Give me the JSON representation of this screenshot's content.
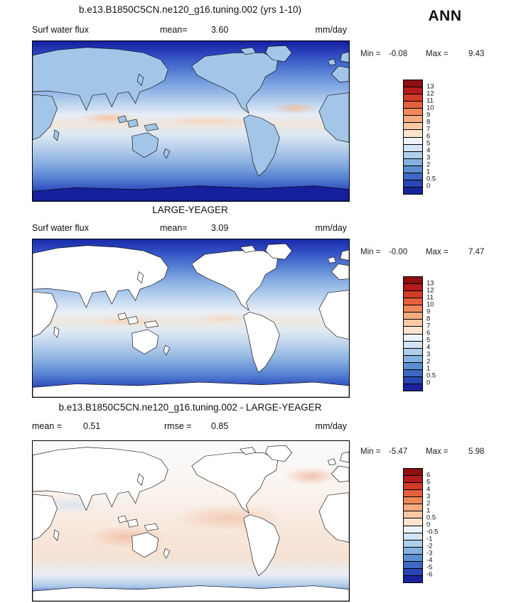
{
  "header": {
    "title": "b.e13.B1850C5CN.ne120_g16.tuning.002 (yrs 1-10)",
    "season": "ANN"
  },
  "palette_top_to_bottom": [
    "#8c1010",
    "#b51b1c",
    "#d23b27",
    "#e4603c",
    "#ef8759",
    "#f5ab80",
    "#f9c9a6",
    "#fbe3d0",
    "#eef2f8",
    "#d3e4f4",
    "#aecfec",
    "#84b2e0",
    "#5c8ed2",
    "#3f68c6",
    "#2a46b6",
    "#1a239e"
  ],
  "panels": [
    {
      "title": "",
      "field_label": "Surf water flux",
      "mean_label": "mean=",
      "mean": "3.60",
      "units": "mm/day",
      "min_label": "Min =",
      "min": "-0.08",
      "max_label": "Max =",
      "max": "9.43",
      "ticks": [
        "13",
        "12",
        "11",
        "10",
        "9",
        "8",
        "7",
        "6",
        "5",
        "4",
        "3",
        "2",
        "1",
        "0.5",
        "0"
      ],
      "land_color": "#a3c6e8",
      "antarctica_color": "#16209c"
    },
    {
      "title": "LARGE-YEAGER",
      "field_label": "Surf water flux",
      "mean_label": "mean=",
      "mean": "3.09",
      "units": "mm/day",
      "min_label": "Min =",
      "min": "-0.00",
      "max_label": "Max =",
      "max": "7.47",
      "ticks": [
        "13",
        "12",
        "11",
        "10",
        "9",
        "8",
        "7",
        "6",
        "5",
        "4",
        "3",
        "2",
        "1",
        "0.5",
        "0"
      ],
      "land_color": "#ffffff",
      "antarctica_color": "#ffffff"
    },
    {
      "title": "b.e13.B1850C5CN.ne120_g16.tuning.002 - LARGE-YEAGER",
      "mean_label": "mean =",
      "mean": "0.51",
      "rmse_label": "rmse =",
      "rmse": "0.85",
      "units": "mm/day",
      "min_label": "Min =",
      "min": "-5.47",
      "max_label": "Max =",
      "max": "5.98",
      "ticks": [
        "6",
        "5",
        "4",
        "3",
        "2",
        "1",
        "0.5",
        "0",
        "-0.5",
        "-1",
        "-2",
        "-3",
        "-4",
        "-5",
        "-6"
      ],
      "land_color": "#ffffff",
      "antarctica_color": "#ffffff"
    }
  ],
  "chart_data": [
    {
      "type": "heatmap",
      "title": "b.e13.B1850C5CN.ne120_g16.tuning.002 (yrs 1-10)",
      "variable": "Surf water flux",
      "season": "ANN",
      "units": "mm/day",
      "mean": 3.6,
      "min": -0.08,
      "max": 9.43,
      "levels": [
        0,
        0.5,
        1,
        2,
        3,
        4,
        5,
        6,
        7,
        8,
        9,
        10,
        11,
        12,
        13
      ],
      "palette": "blue-white-red, low values dark blue, high values dark red",
      "projection": "global lat-lon map, Pacific-centered, coastlines drawn, land filled with field values",
      "pattern": "dark blue (low flux) at high latitudes and polar regions, pale/near-white mid values in subtropics, pale pink-orange high values along ITCZ and tropical west Pacific"
    },
    {
      "type": "heatmap",
      "title": "LARGE-YEAGER",
      "variable": "Surf water flux",
      "season": "ANN",
      "units": "mm/day",
      "mean": 3.09,
      "min": -0.0,
      "max": 7.47,
      "levels": [
        0,
        0.5,
        1,
        2,
        3,
        4,
        5,
        6,
        7,
        8,
        9,
        10,
        11,
        12,
        13
      ],
      "palette": "blue-white-red, same scale as model panel",
      "projection": "global lat-lon map, Pacific-centered, land masked white (ocean-only observations)",
      "pattern": "dark blue at high latitudes, lighter blues mid-latitudes, pale band with slight pink near equator"
    },
    {
      "type": "heatmap",
      "title": "b.e13.B1850C5CN.ne120_g16.tuning.002 - LARGE-YEAGER",
      "variable": "Surf water flux difference (model minus obs)",
      "season": "ANN",
      "units": "mm/day",
      "mean": 0.51,
      "rmse": 0.85,
      "min": -5.47,
      "max": 5.98,
      "levels": [
        -6,
        -5,
        -4,
        -3,
        -2,
        -1,
        -0.5,
        0,
        0.5,
        1,
        2,
        3,
        4,
        5,
        6
      ],
      "palette": "blue-white-red difference scale, negative blue, positive red",
      "projection": "global lat-lon map, Pacific-centered, land masked white",
      "pattern": "mostly near-white with widespread light red (positive bias) over tropical and mid-latitude oceans, scattered light blue patches, dark blue band along Antarctic margin"
    }
  ]
}
